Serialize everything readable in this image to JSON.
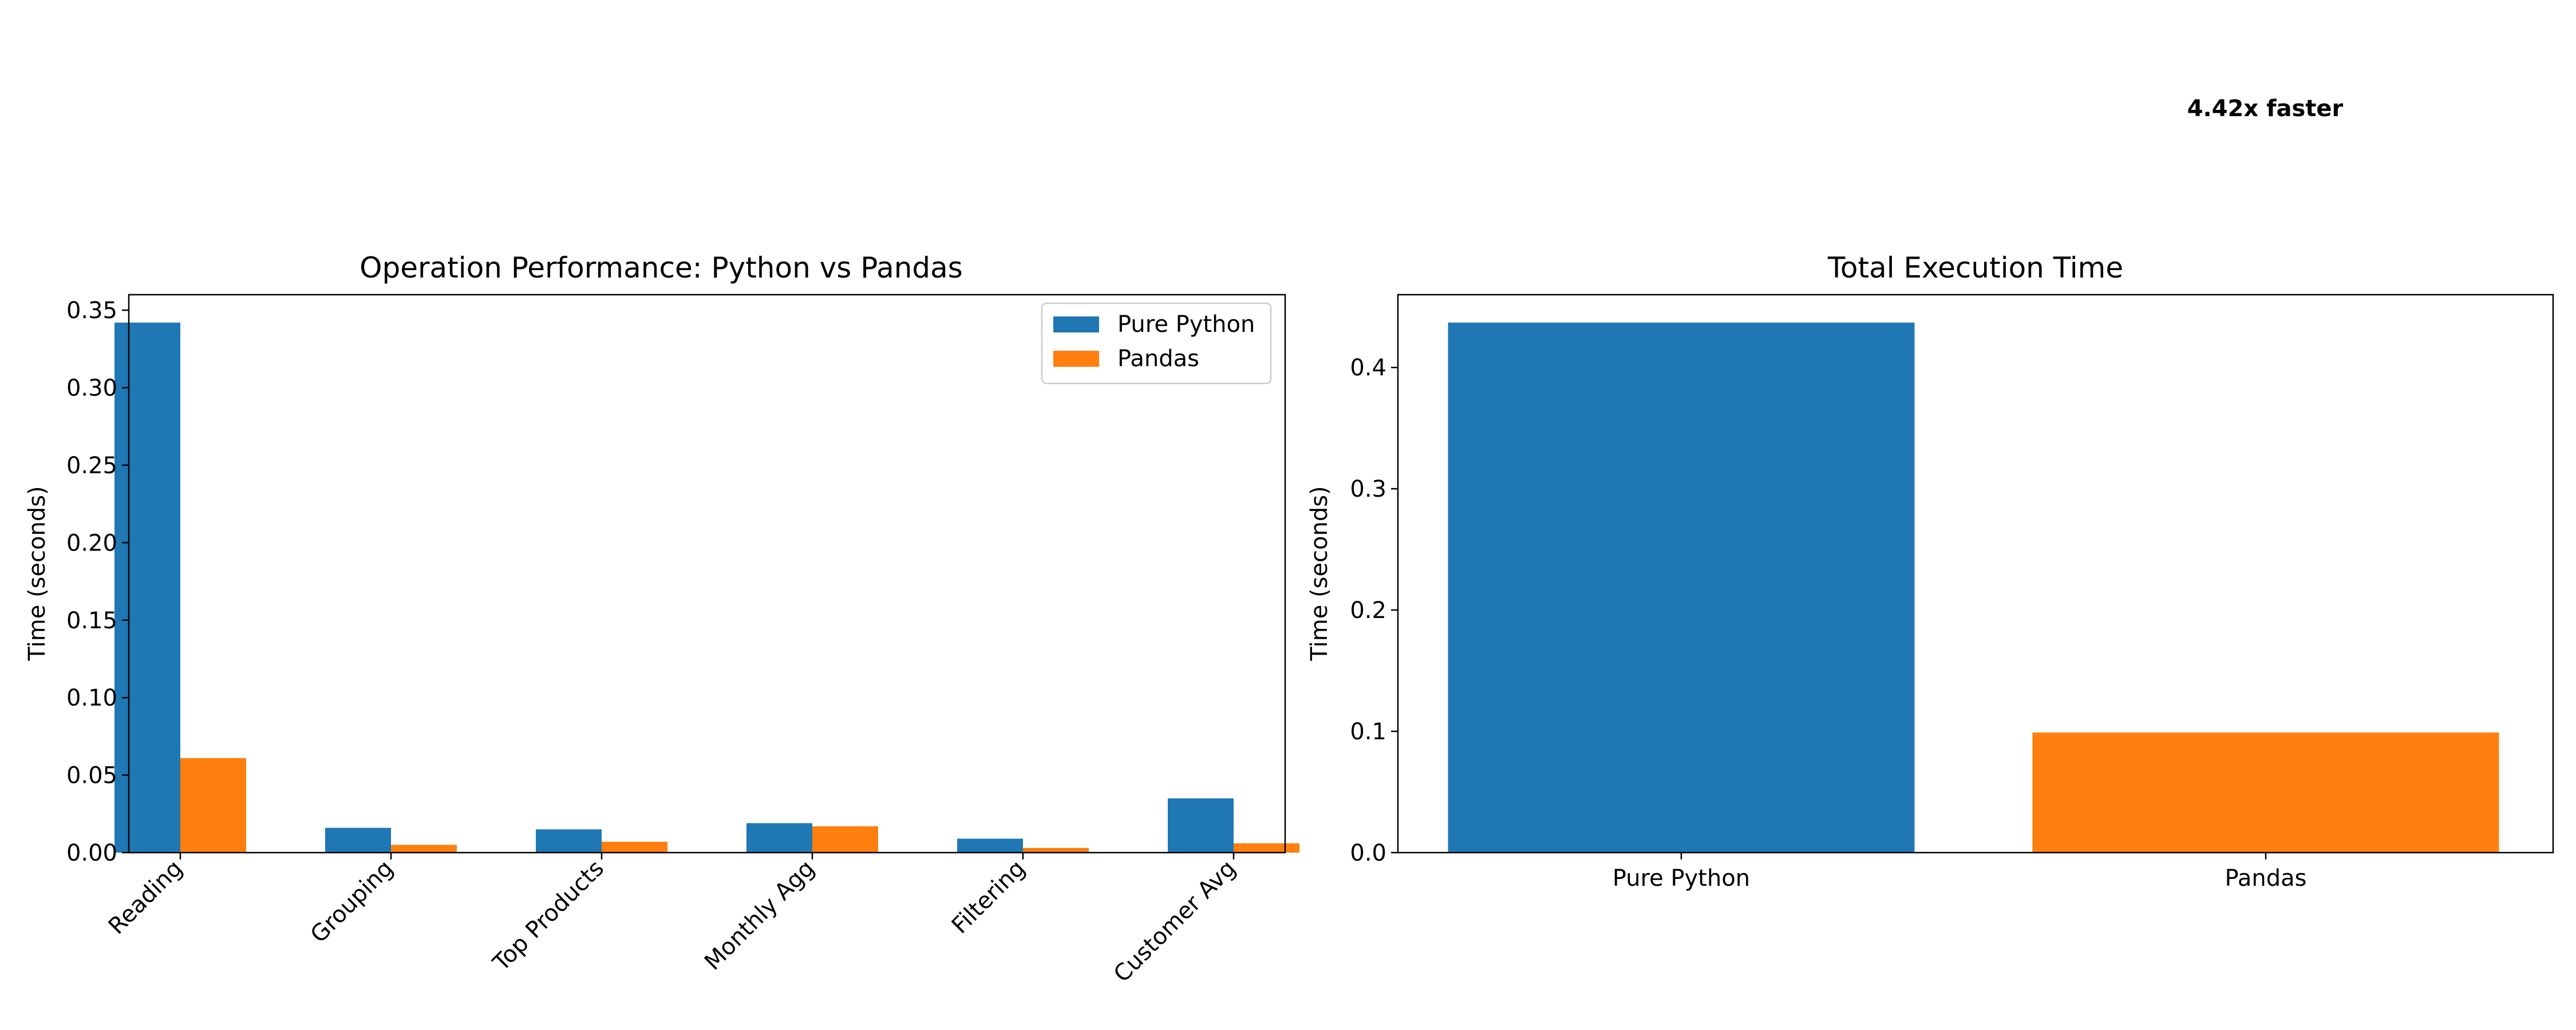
{
  "chart_data": [
    {
      "type": "bar",
      "title": "Operation Performance: Python vs Pandas",
      "xlabel": "",
      "ylabel": "Time (seconds)",
      "categories": [
        "Reading",
        "Grouping",
        "Top Products",
        "Monthly Agg",
        "Filtering",
        "Customer Avg"
      ],
      "series": [
        {
          "name": "Pure Python",
          "color": "#1f77b4",
          "values": [
            0.342,
            0.016,
            0.015,
            0.019,
            0.009,
            0.035
          ]
        },
        {
          "name": "Pandas",
          "color": "#ff7f0e",
          "values": [
            0.061,
            0.005,
            0.007,
            0.017,
            0.003,
            0.006
          ]
        }
      ],
      "ylim": [
        0,
        0.36
      ],
      "yticks": [
        0.0,
        0.05,
        0.1,
        0.15,
        0.2,
        0.25,
        0.3,
        0.35
      ],
      "ytick_labels": [
        "0.00",
        "0.05",
        "0.10",
        "0.15",
        "0.20",
        "0.25",
        "0.30",
        "0.35"
      ],
      "legend": "top-right",
      "grid": false
    },
    {
      "type": "bar",
      "title": "Total Execution Time",
      "xlabel": "",
      "ylabel": "Time (seconds)",
      "categories": [
        "Pure Python",
        "Pandas"
      ],
      "values": [
        0.437,
        0.099
      ],
      "colors": [
        "#1f77b4",
        "#ff7f0e"
      ],
      "ylim": [
        0,
        0.46
      ],
      "yticks": [
        0.0,
        0.1,
        0.2,
        0.3,
        0.4
      ],
      "ytick_labels": [
        "0.0",
        "0.1",
        "0.2",
        "0.3",
        "0.4"
      ],
      "annotation": "4.42x faster",
      "grid": false
    }
  ]
}
